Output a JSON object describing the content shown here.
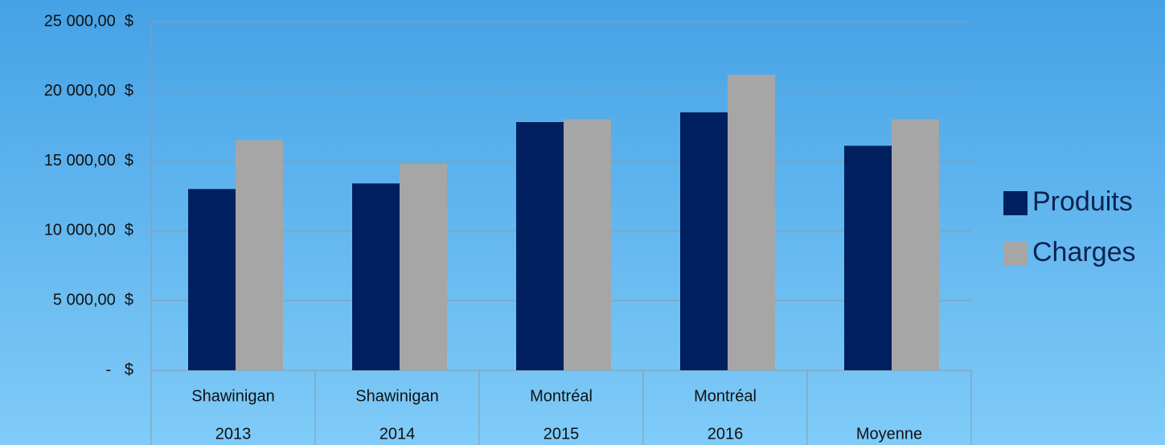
{
  "chart_data": {
    "type": "bar",
    "categories": [
      [
        "Shawinigan",
        "2013"
      ],
      [
        "Shawinigan",
        "2014"
      ],
      [
        "Montréal",
        "2015"
      ],
      [
        "Montréal",
        "2016"
      ],
      [
        "Moyenne"
      ]
    ],
    "series": [
      {
        "name": "Produits",
        "color": "#002060",
        "values": [
          13000,
          13400,
          17800,
          18500,
          16100
        ]
      },
      {
        "name": "Charges",
        "color": "#a6a6a6",
        "values": [
          16500,
          14800,
          18000,
          21200,
          18000
        ]
      }
    ],
    "ylim": [
      0,
      25000
    ],
    "yticks": [
      {
        "value": 0,
        "label": "-   $"
      },
      {
        "value": 5000,
        "label": "5 000,00  $"
      },
      {
        "value": 10000,
        "label": "10 000,00  $"
      },
      {
        "value": 15000,
        "label": "15 000,00  $"
      },
      {
        "value": 20000,
        "label": "20 000,00  $"
      },
      {
        "value": 25000,
        "label": "25 000,00  $"
      }
    ],
    "grid": true,
    "legend": "right"
  }
}
